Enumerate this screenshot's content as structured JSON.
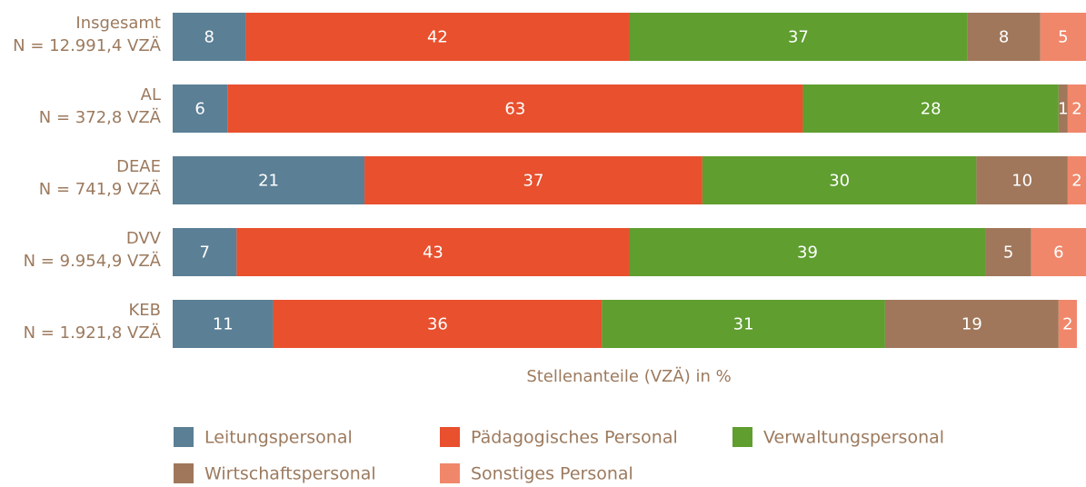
{
  "chart_data": {
    "type": "stacked-bar-horizontal",
    "categories": [
      [
        "Insgesamt",
        "N = 12.991,4 VZÄ"
      ],
      [
        "AL",
        "N = 372,8 VZÄ"
      ],
      [
        "DEAE",
        "N = 741,9 VZÄ"
      ],
      [
        "DVV",
        "N = 9.954,9 VZÄ"
      ],
      [
        "KEB",
        "N = 1.921,8 VZÄ"
      ]
    ],
    "series": [
      {
        "name": "Leitungspersonal",
        "color": "#5b7f95",
        "values": [
          8,
          6,
          21,
          7,
          11
        ]
      },
      {
        "name": "Pädagogisches Personal",
        "color": "#e8502e",
        "values": [
          42,
          63,
          37,
          43,
          36
        ]
      },
      {
        "name": "Verwaltungspersonal",
        "color": "#5f9e2f",
        "values": [
          37,
          28,
          30,
          39,
          31
        ]
      },
      {
        "name": "Wirtschaftspersonal",
        "color": "#a0775b",
        "values": [
          8,
          1,
          10,
          5,
          19
        ]
      },
      {
        "name": "Sonstiges Personal",
        "color": "#f0876a",
        "values": [
          5,
          2,
          2,
          6,
          2
        ]
      }
    ],
    "xlim": [
      0,
      100
    ],
    "x_label": "Stellenanteile (VZÄ) in %",
    "legend": "bottom"
  }
}
